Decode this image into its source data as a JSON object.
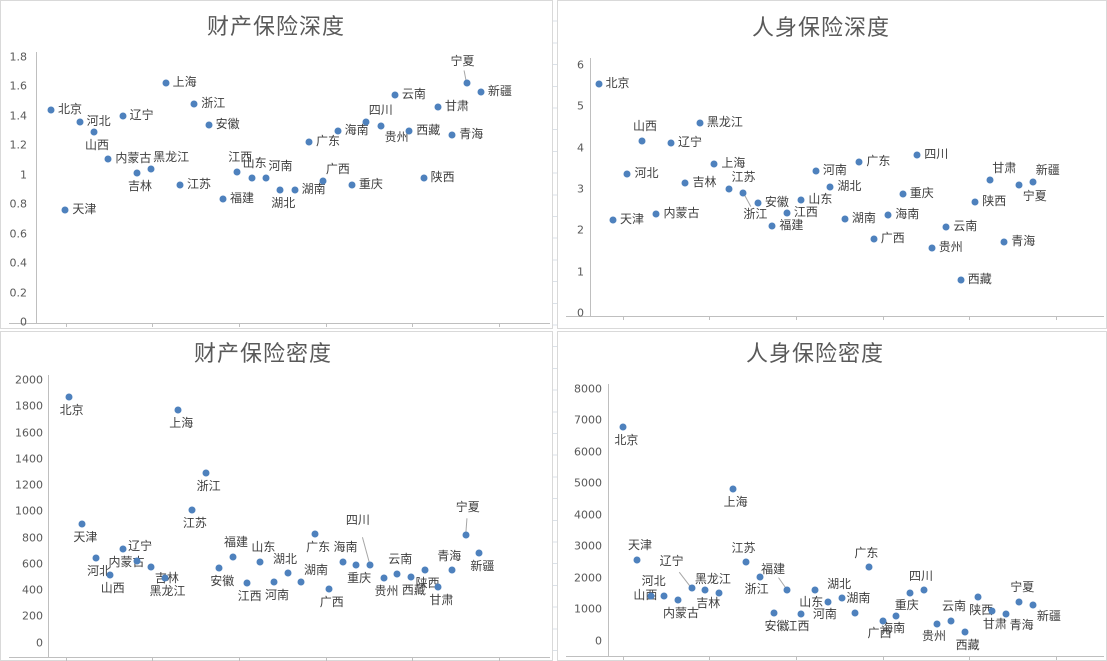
{
  "colors": {
    "marker": "#4E81BD",
    "title_text": "#595959",
    "axis_tick_text": "#595959",
    "data_label_text": "#3F3F3F",
    "axis_line": "#BFBFBF",
    "leader_line": "#A6A6A6",
    "panel_border": "#D9D9D9",
    "worksheet_gridline": "#DBE1E8"
  },
  "chart_data": [
    {
      "id": "property-insurance-depth",
      "type": "scatter",
      "title": "财产保险深度",
      "xlabel": "",
      "ylabel": "",
      "x_axis_note": "provinces in order 1-31, no x tick labels",
      "ylim": [
        0,
        1.8
      ],
      "y_tick_step": 0.2,
      "y_tick_labels": [
        "1.8",
        "1.6",
        "1.4",
        "1.2",
        "1",
        "0.8",
        "0.6",
        "0.4",
        "0.2",
        "0"
      ],
      "grid": false,
      "legend": "none",
      "points": [
        {
          "label": "北京",
          "y": 1.44,
          "lp": "r"
        },
        {
          "label": "天津",
          "y": 0.76,
          "lp": "r"
        },
        {
          "label": "河北",
          "y": 1.36,
          "lp": "r"
        },
        {
          "label": "山西",
          "y": 1.29,
          "lp": "b"
        },
        {
          "label": "内蒙古",
          "y": 1.11,
          "lp": "r"
        },
        {
          "label": "辽宁",
          "y": 1.4,
          "lp": "r"
        },
        {
          "label": "吉林",
          "y": 1.01,
          "lp": "b"
        },
        {
          "label": "黑龙江",
          "y": 1.04,
          "lp": "ar"
        },
        {
          "label": "上海",
          "y": 1.62,
          "lp": "r"
        },
        {
          "label": "江苏",
          "y": 0.93,
          "lp": "r"
        },
        {
          "label": "浙江",
          "y": 1.48,
          "lp": "r"
        },
        {
          "label": "安徽",
          "y": 1.34,
          "lp": "r"
        },
        {
          "label": "福建",
          "y": 0.84,
          "lp": "r"
        },
        {
          "label": "江西",
          "y": 1.02,
          "lp": "a"
        },
        {
          "label": "山东",
          "y": 0.98,
          "lp": "a"
        },
        {
          "label": "河南",
          "y": 0.98,
          "lp": "ar"
        },
        {
          "label": "湖北",
          "y": 0.9,
          "lp": "b"
        },
        {
          "label": "湖南",
          "y": 0.9,
          "lp": "r"
        },
        {
          "label": "广东",
          "y": 1.22,
          "lp": "r"
        },
        {
          "label": "广西",
          "y": 0.96,
          "lp": "ar"
        },
        {
          "label": "海南",
          "y": 1.3,
          "lp": "r"
        },
        {
          "label": "重庆",
          "y": 0.93,
          "lp": "r"
        },
        {
          "label": "四川",
          "y": 1.36,
          "lp": "ar"
        },
        {
          "label": "贵州",
          "y": 1.33,
          "lp": "br"
        },
        {
          "label": "云南",
          "y": 1.54,
          "lp": "r"
        },
        {
          "label": "西藏",
          "y": 1.3,
          "lp": "r"
        },
        {
          "label": "陕西",
          "y": 0.98,
          "lp": "r"
        },
        {
          "label": "甘肃",
          "y": 1.46,
          "lp": "r"
        },
        {
          "label": "青海",
          "y": 1.27,
          "lp": "r"
        },
        {
          "label": "宁夏",
          "y": 1.62,
          "lp": "L",
          "lo": [
            -4,
            -21
          ]
        },
        {
          "label": "新疆",
          "y": 1.56,
          "lp": "r"
        }
      ]
    },
    {
      "id": "life-insurance-depth",
      "type": "scatter",
      "title": "人身保险深度",
      "xlabel": "",
      "ylabel": "",
      "x_axis_note": "provinces in order 1-31, no x tick labels",
      "ylim": [
        0,
        6
      ],
      "y_tick_step": 1,
      "y_tick_labels": [
        "6",
        "5",
        "4",
        "3",
        "2",
        "1",
        "0"
      ],
      "grid": false,
      "legend": "none",
      "points": [
        {
          "label": "北京",
          "y": 5.55,
          "lp": "r"
        },
        {
          "label": "天津",
          "y": 2.25,
          "lp": "r"
        },
        {
          "label": "河北",
          "y": 3.35,
          "lp": "r"
        },
        {
          "label": "山西",
          "y": 4.15,
          "lp": "a"
        },
        {
          "label": "内蒙古",
          "y": 2.4,
          "lp": "r"
        },
        {
          "label": "辽宁",
          "y": 4.1,
          "lp": "r"
        },
        {
          "label": "吉林",
          "y": 3.15,
          "lp": "r"
        },
        {
          "label": "黑龙江",
          "y": 4.6,
          "lp": "r"
        },
        {
          "label": "上海",
          "y": 3.6,
          "lp": "r"
        },
        {
          "label": "江苏",
          "y": 3.0,
          "lp": "ar"
        },
        {
          "label": "浙江",
          "y": 2.9,
          "lp": "L",
          "lo": [
            12,
            22
          ]
        },
        {
          "label": "安徽",
          "y": 2.65,
          "lp": "r"
        },
        {
          "label": "福建",
          "y": 2.1,
          "lp": "r"
        },
        {
          "label": "江西",
          "y": 2.42,
          "lp": "r"
        },
        {
          "label": "山东",
          "y": 2.74,
          "lp": "r"
        },
        {
          "label": "河南",
          "y": 3.44,
          "lp": "r"
        },
        {
          "label": "湖北",
          "y": 3.04,
          "lp": "r"
        },
        {
          "label": "湖南",
          "y": 2.26,
          "lp": "r"
        },
        {
          "label": "广东",
          "y": 3.66,
          "lp": "r"
        },
        {
          "label": "广西",
          "y": 1.79,
          "lp": "r"
        },
        {
          "label": "海南",
          "y": 2.36,
          "lp": "r"
        },
        {
          "label": "重庆",
          "y": 2.88,
          "lp": "r"
        },
        {
          "label": "四川",
          "y": 3.83,
          "lp": "r"
        },
        {
          "label": "贵州",
          "y": 1.56,
          "lp": "r"
        },
        {
          "label": "云南",
          "y": 2.08,
          "lp": "r"
        },
        {
          "label": "西藏",
          "y": 0.8,
          "lp": "r"
        },
        {
          "label": "陕西",
          "y": 2.68,
          "lp": "r"
        },
        {
          "label": "甘肃",
          "y": 3.22,
          "lp": "ar"
        },
        {
          "label": "青海",
          "y": 1.71,
          "lp": "r"
        },
        {
          "label": "宁夏",
          "y": 3.1,
          "lp": "br"
        },
        {
          "label": "新疆",
          "y": 3.16,
          "lp": "ar"
        }
      ]
    },
    {
      "id": "property-insurance-density",
      "type": "scatter",
      "title": "财产保险密度",
      "xlabel": "",
      "ylabel": "",
      "x_axis_note": "provinces in order 1-31, no x tick labels",
      "ylim": [
        0,
        2000
      ],
      "y_tick_step": 200,
      "y_tick_labels": [
        "2000",
        "1800",
        "1600",
        "1400",
        "1200",
        "1000",
        "800",
        "600",
        "400",
        "200",
        "0"
      ],
      "grid": false,
      "legend": "none",
      "points": [
        {
          "label": "北京",
          "y": 1870,
          "lp": "b"
        },
        {
          "label": "天津",
          "y": 905,
          "lp": "b"
        },
        {
          "label": "河北",
          "y": 645,
          "lp": "b"
        },
        {
          "label": "山西",
          "y": 515,
          "lp": "b"
        },
        {
          "label": "内蒙古",
          "y": 710,
          "lp": "b"
        },
        {
          "label": "辽宁",
          "y": 625,
          "lp": "a"
        },
        {
          "label": "吉林",
          "y": 580,
          "lp": "br"
        },
        {
          "label": "黑龙江",
          "y": 495,
          "lp": "b"
        },
        {
          "label": "上海",
          "y": 1775,
          "lp": "b"
        },
        {
          "label": "江苏",
          "y": 1010,
          "lp": "b"
        },
        {
          "label": "浙江",
          "y": 1290,
          "lp": "b"
        },
        {
          "label": "安徽",
          "y": 570,
          "lp": "b"
        },
        {
          "label": "福建",
          "y": 650,
          "lp": "a"
        },
        {
          "label": "江西",
          "y": 455,
          "lp": "b"
        },
        {
          "label": "山东",
          "y": 615,
          "lp": "a"
        },
        {
          "label": "河南",
          "y": 465,
          "lp": "b"
        },
        {
          "label": "湖北",
          "y": 530,
          "lp": "al"
        },
        {
          "label": "湖南",
          "y": 460,
          "lp": "ar"
        },
        {
          "label": "广东",
          "y": 830,
          "lp": "b"
        },
        {
          "label": "广西",
          "y": 410,
          "lp": "b"
        },
        {
          "label": "海南",
          "y": 615,
          "lp": "a"
        },
        {
          "label": "重庆",
          "y": 595,
          "lp": "b"
        },
        {
          "label": "四川",
          "y": 595,
          "lp": "L",
          "lo": [
            -12,
            -44
          ]
        },
        {
          "label": "贵州",
          "y": 495,
          "lp": "b"
        },
        {
          "label": "云南",
          "y": 525,
          "lp": "a"
        },
        {
          "label": "西藏",
          "y": 500,
          "lp": "b"
        },
        {
          "label": "陕西",
          "y": 550,
          "lp": "b"
        },
        {
          "label": "甘肃",
          "y": 425,
          "lp": "b"
        },
        {
          "label": "青海",
          "y": 550,
          "lp": "al"
        },
        {
          "label": "宁夏",
          "y": 820,
          "lp": "L",
          "lo": [
            2,
            -27
          ]
        },
        {
          "label": "新疆",
          "y": 685,
          "lp": "b"
        }
      ]
    },
    {
      "id": "life-insurance-density",
      "type": "scatter",
      "title": "人身保险密度",
      "xlabel": "",
      "ylabel": "",
      "x_axis_note": "provinces in order 1-31, no x tick labels",
      "ylim": [
        0,
        8000
      ],
      "y_tick_step": 1000,
      "y_tick_labels": [
        "8000",
        "7000",
        "6000",
        "5000",
        "4000",
        "3000",
        "2000",
        "1000",
        "0"
      ],
      "grid": false,
      "legend": "none",
      "points": [
        {
          "label": "北京",
          "y": 6790,
          "lp": "b"
        },
        {
          "label": "天津",
          "y": 2560,
          "lp": "a"
        },
        {
          "label": "河北",
          "y": 1440,
          "lp": "a"
        },
        {
          "label": "山西",
          "y": 1430,
          "lp": "l"
        },
        {
          "label": "内蒙古",
          "y": 1300,
          "lp": "b"
        },
        {
          "label": "辽宁",
          "y": 1670,
          "lp": "L",
          "lo": [
            -20,
            -26
          ]
        },
        {
          "label": "吉林",
          "y": 1610,
          "lp": "b"
        },
        {
          "label": "黑龙江",
          "y": 1505,
          "lp": "al"
        },
        {
          "label": "上海",
          "y": 4800,
          "lp": "b"
        },
        {
          "label": "江苏",
          "y": 2510,
          "lp": "al"
        },
        {
          "label": "浙江",
          "y": 2035,
          "lp": "bl"
        },
        {
          "label": "安徽",
          "y": 895,
          "lp": "b"
        },
        {
          "label": "福建",
          "y": 1615,
          "lp": "L",
          "lo": [
            -14,
            -20
          ]
        },
        {
          "label": "江西",
          "y": 865,
          "lp": "bl"
        },
        {
          "label": "山东",
          "y": 1615,
          "lp": "bl"
        },
        {
          "label": "河南",
          "y": 1245,
          "lp": "bl"
        },
        {
          "label": "湖北",
          "y": 1370,
          "lp": "al"
        },
        {
          "label": "湖南",
          "y": 895,
          "lp": "a"
        },
        {
          "label": "广东",
          "y": 2350,
          "lp": "al"
        },
        {
          "label": "广西",
          "y": 635,
          "lp": "bl"
        },
        {
          "label": "海南",
          "y": 790,
          "lp": "bl"
        },
        {
          "label": "重庆",
          "y": 1530,
          "lp": "bl"
        },
        {
          "label": "四川",
          "y": 1605,
          "lp": "al"
        },
        {
          "label": "贵州",
          "y": 540,
          "lp": "bl"
        },
        {
          "label": "云南",
          "y": 635,
          "lp": "a"
        },
        {
          "label": "西藏",
          "y": 295,
          "lp": "b"
        },
        {
          "label": "陕西",
          "y": 1390,
          "lp": "b"
        },
        {
          "label": "甘肃",
          "y": 950,
          "lp": "b"
        },
        {
          "label": "青海",
          "y": 845,
          "lp": "br"
        },
        {
          "label": "宁夏",
          "y": 1220,
          "lp": "a"
        },
        {
          "label": "新疆",
          "y": 1150,
          "lp": "br"
        }
      ]
    }
  ]
}
